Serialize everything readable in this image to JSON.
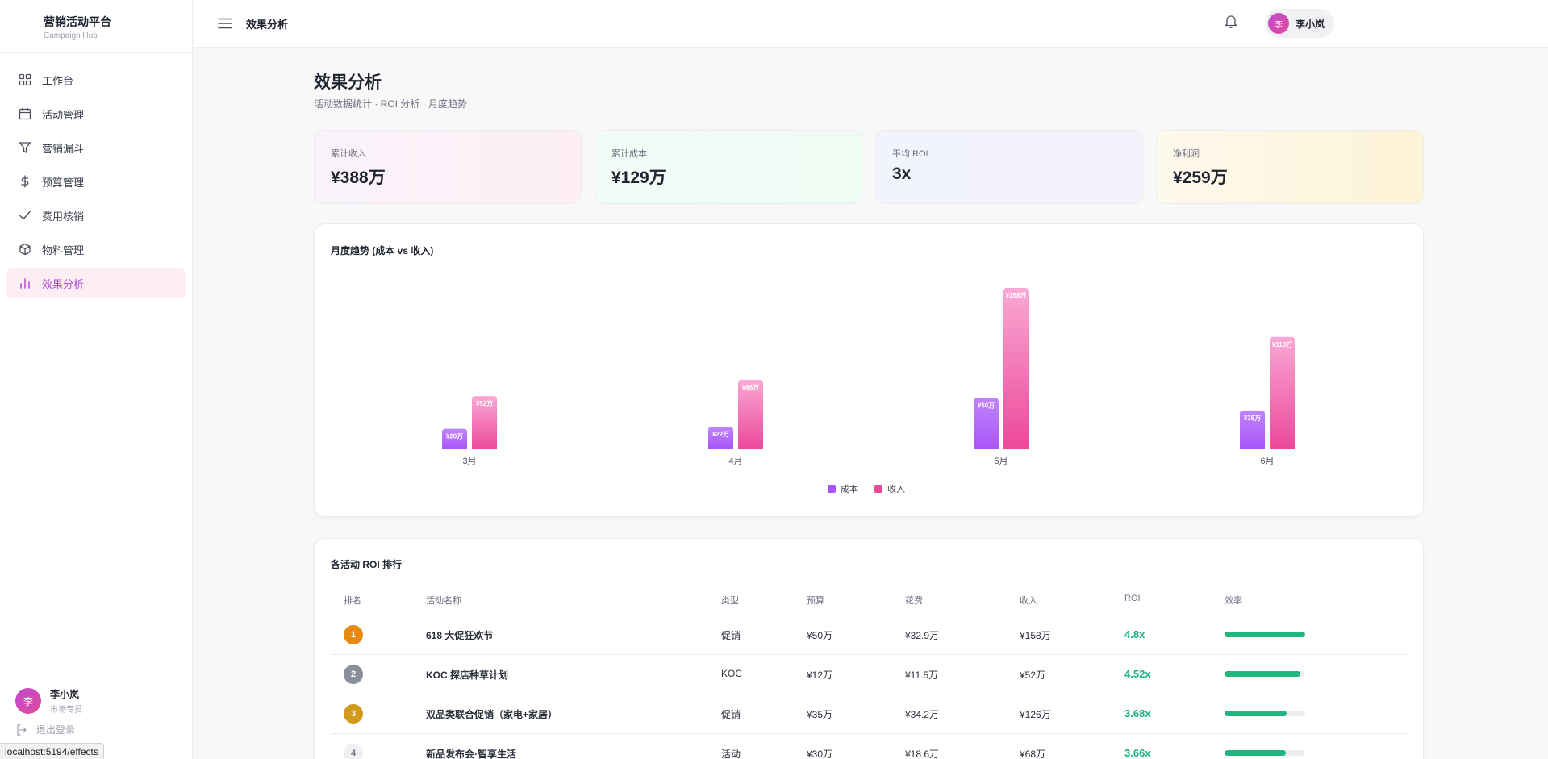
{
  "brand": {
    "title": "营销活动平台",
    "subtitle": "Campaign Hub"
  },
  "sidebar": {
    "items": [
      {
        "label": "工作台",
        "icon": "grid-icon"
      },
      {
        "label": "活动管理",
        "icon": "calendar-icon"
      },
      {
        "label": "营销漏斗",
        "icon": "funnel-icon"
      },
      {
        "label": "预算管理",
        "icon": "dollar-icon"
      },
      {
        "label": "费用核销",
        "icon": "check-icon"
      },
      {
        "label": "物料管理",
        "icon": "box-icon"
      },
      {
        "label": "效果分析",
        "icon": "bar-chart-icon",
        "active": true
      }
    ],
    "user": {
      "avatar": "李",
      "name": "李小岚",
      "role": "市场专员"
    },
    "logout": "退出登录"
  },
  "topbar": {
    "title": "效果分析",
    "user": {
      "avatar": "李",
      "name": "李小岚"
    }
  },
  "page": {
    "title": "效果分析",
    "subtitle": "活动数据统计 · ROI 分析 · 月度趋势"
  },
  "stats": [
    {
      "label": "累计收入",
      "value": "¥388万"
    },
    {
      "label": "累计成本",
      "value": "¥129万"
    },
    {
      "label": "平均 ROI",
      "value": "3x"
    },
    {
      "label": "净利润",
      "value": "¥259万"
    }
  ],
  "chart_title": "月度趋势 (成本 vs 收入)",
  "chart_data": {
    "type": "bar",
    "categories": [
      "3月",
      "4月",
      "5月",
      "6月"
    ],
    "series": [
      {
        "name": "成本",
        "values": [
          20,
          22,
          50,
          38
        ],
        "labels": [
          "¥20万",
          "¥22万",
          "¥50万",
          "¥38万"
        ],
        "color": "#a855f7"
      },
      {
        "name": "收入",
        "values": [
          52,
          68,
          158,
          110
        ],
        "labels": [
          "¥52万",
          "¥68万",
          "¥158万",
          "¥110万"
        ],
        "color": "#ec4899"
      }
    ]
  },
  "roi_table": {
    "title": "各活动 ROI 排行",
    "headers": [
      "排名",
      "活动名称",
      "类型",
      "预算",
      "花费",
      "收入",
      "ROI",
      "效率"
    ],
    "rows": [
      {
        "rank": "1",
        "name": "618 大促狂欢节",
        "type": "促销",
        "budget": "¥50万",
        "spent": "¥32.9万",
        "revenue": "¥158万",
        "roi": "4.8x",
        "efficiency": 1.0,
        "rank_color": "#e88a12"
      },
      {
        "rank": "2",
        "name": "KOC 探店种草计划",
        "type": "KOC",
        "budget": "¥12万",
        "spent": "¥11.5万",
        "revenue": "¥52万",
        "roi": "4.52x",
        "efficiency": 0.94,
        "rank_color": "#8a8f9c"
      },
      {
        "rank": "3",
        "name": "双品类联合促销（家电+家居）",
        "type": "促销",
        "budget": "¥35万",
        "spent": "¥34.2万",
        "revenue": "¥126万",
        "roi": "3.68x",
        "efficiency": 0.77,
        "rank_color": "#d19a1c"
      },
      {
        "rank": "4",
        "name": "新品发布会·智享生活",
        "type": "活动",
        "budget": "¥30万",
        "spent": "¥18.6万",
        "revenue": "¥68万",
        "roi": "3.66x",
        "efficiency": 0.76,
        "rank_color": "#f1f1f4"
      }
    ]
  },
  "status_url": "localhost:5194/effects"
}
